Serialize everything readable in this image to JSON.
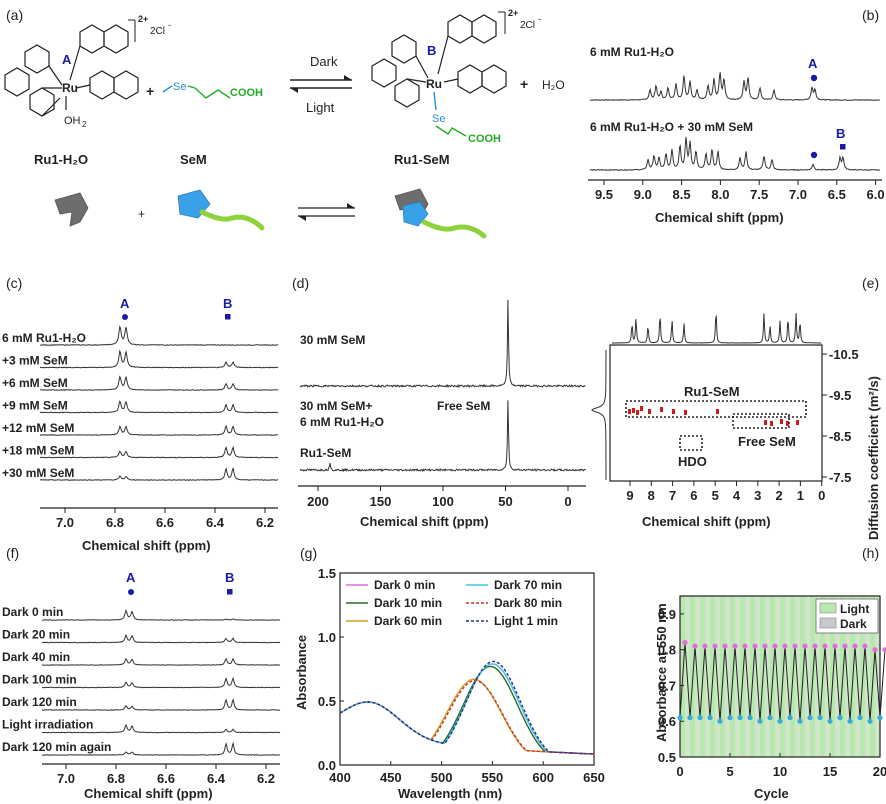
{
  "panels": {
    "a": {
      "label": "(a)",
      "charge1": "2+",
      "counter1": "2Cl",
      "counter_sup1": "-",
      "charge2": "2+",
      "counter2": "2Cl",
      "counter_sup2": "-",
      "site_a": "A",
      "site_b": "B",
      "ru": "Ru",
      "oh2": "OH",
      "oh2_sub": "2",
      "se": "Se",
      "cooh": "COOH",
      "se2": "Se",
      "cooh2": "COOH",
      "plus1": "+",
      "plus2": "+",
      "plus3": "+",
      "water": "H₂O",
      "arrow_top": "Dark",
      "arrow_bottom": "Light",
      "name1": "Ru1-H₂O",
      "name2": "SeM",
      "name3": "Ru1-SeM"
    },
    "b": {
      "label": "(b)",
      "trace1": "6 mM Ru1-H₂O",
      "trace2": "6 mM Ru1-H₂O + 30 mM SeM",
      "marker_a": "A",
      "marker_b": "B",
      "xlabel": "Chemical shift (ppm)",
      "ticks": [
        "9.5",
        "9.0",
        "8.5",
        "8.0",
        "7.5",
        "7.0",
        "6.5",
        "6.0"
      ]
    },
    "c": {
      "label": "(c)",
      "marker_a": "A",
      "marker_b": "B",
      "traces": [
        "6 mM Ru1-H₂O",
        "+3 mM SeM",
        "+6 mM SeM",
        "+9 mM SeM",
        "+12 mM SeM",
        "+18 mM SeM",
        "+30 mM SeM"
      ],
      "xlabel": "Chemical shift (ppm)",
      "ticks": [
        "7.0",
        "6.8",
        "6.6",
        "6.4",
        "6.2"
      ]
    },
    "d": {
      "label": "(d)",
      "trace1": "30 mM SeM",
      "trace2a": "30 mM SeM+",
      "trace2b": "6 mM Ru1-H₂O",
      "free": "Free SeM",
      "ru1sem": "Ru1-SeM",
      "xlabel": "Chemical shift (ppm)",
      "ticks": [
        "200",
        "150",
        "100",
        "50",
        "0"
      ]
    },
    "e": {
      "label": "(e)",
      "ru1sem": "Ru1-SeM",
      "free": "Free SeM",
      "hdo": "HDO",
      "xlabel": "Chemical shift (ppm)",
      "ylabel": "Diffusion coefficient (m²/s)",
      "xticks": [
        "9",
        "8",
        "7",
        "6",
        "5",
        "4",
        "3",
        "2",
        "1",
        "0"
      ],
      "yticks": [
        "-10.5",
        "-9.5",
        "-8.5",
        "-7.5"
      ]
    },
    "f": {
      "label": "(f)",
      "marker_a": "A",
      "marker_b": "B",
      "traces": [
        "Dark 0 min",
        "Dark 20 min",
        "Dark 40 min",
        "Dark 100 min",
        "Dark 120 min",
        "Light irradiation",
        "Dark 120 min again"
      ],
      "xlabel": "Chemical shift (ppm)",
      "ticks": [
        "7.0",
        "6.8",
        "6.6",
        "6.4",
        "6.2"
      ]
    },
    "g": {
      "label": "(g)"
    },
    "h": {
      "label": "(h)"
    }
  },
  "chart_data": [
    {
      "panel": "g",
      "type": "line",
      "xlabel": "Wavelength (nm)",
      "ylabel": "Absorbance",
      "xlim": [
        400,
        650
      ],
      "ylim": [
        0,
        1.5
      ],
      "xticks": [
        "400",
        "450",
        "500",
        "550",
        "600",
        "650"
      ],
      "yticks": [
        "0.0",
        "0.5",
        "1.0",
        "1.5"
      ],
      "legend_position": "top",
      "series": [
        {
          "name": "Dark 0 min",
          "color": "#e070d8",
          "dash": "solid",
          "peak": 550,
          "height": 0.79
        },
        {
          "name": "Dark 10 min",
          "color": "#2a6e2a",
          "dash": "solid",
          "peak": 548,
          "height": 0.77
        },
        {
          "name": "Dark 60 min",
          "color": "#c8a020",
          "dash": "solid",
          "peak": 532,
          "height": 0.67
        },
        {
          "name": "Dark 70 min",
          "color": "#40c8e0",
          "dash": "solid",
          "peak": 550,
          "height": 0.79
        },
        {
          "name": "Dark 80 min",
          "color": "#d03030",
          "dash": "dashed",
          "peak": 533,
          "height": 0.66
        },
        {
          "name": "Light 1 min",
          "color": "#2030a0",
          "dash": "dashed",
          "peak": 551,
          "height": 0.81
        }
      ]
    },
    {
      "panel": "h",
      "type": "line",
      "xlabel": "Cycle",
      "ylabel": "Absorbance at 550 nm",
      "xlim": [
        0,
        20
      ],
      "ylim": [
        0.5,
        0.95
      ],
      "xticks": [
        "0",
        "5",
        "10",
        "15",
        "20"
      ],
      "yticks": [
        "0.5",
        "0.6",
        "0.7",
        "0.8",
        "0.9"
      ],
      "legend": [
        {
          "name": "Light",
          "color": "#b8e8b0"
        },
        {
          "name": "Dark",
          "color": "#c8c8d0"
        }
      ],
      "legend_position": "top-right",
      "high": [
        0.82,
        0.81,
        0.81,
        0.81,
        0.81,
        0.81,
        0.81,
        0.81,
        0.81,
        0.81,
        0.81,
        0.81,
        0.81,
        0.81,
        0.81,
        0.81,
        0.81,
        0.81,
        0.81,
        0.8,
        0.8
      ],
      "low": [
        0.61,
        0.61,
        0.61,
        0.61,
        0.6,
        0.61,
        0.61,
        0.61,
        0.6,
        0.61,
        0.6,
        0.61,
        0.6,
        0.61,
        0.61,
        0.6,
        0.61,
        0.6,
        0.61,
        0.6,
        0.61
      ]
    }
  ]
}
